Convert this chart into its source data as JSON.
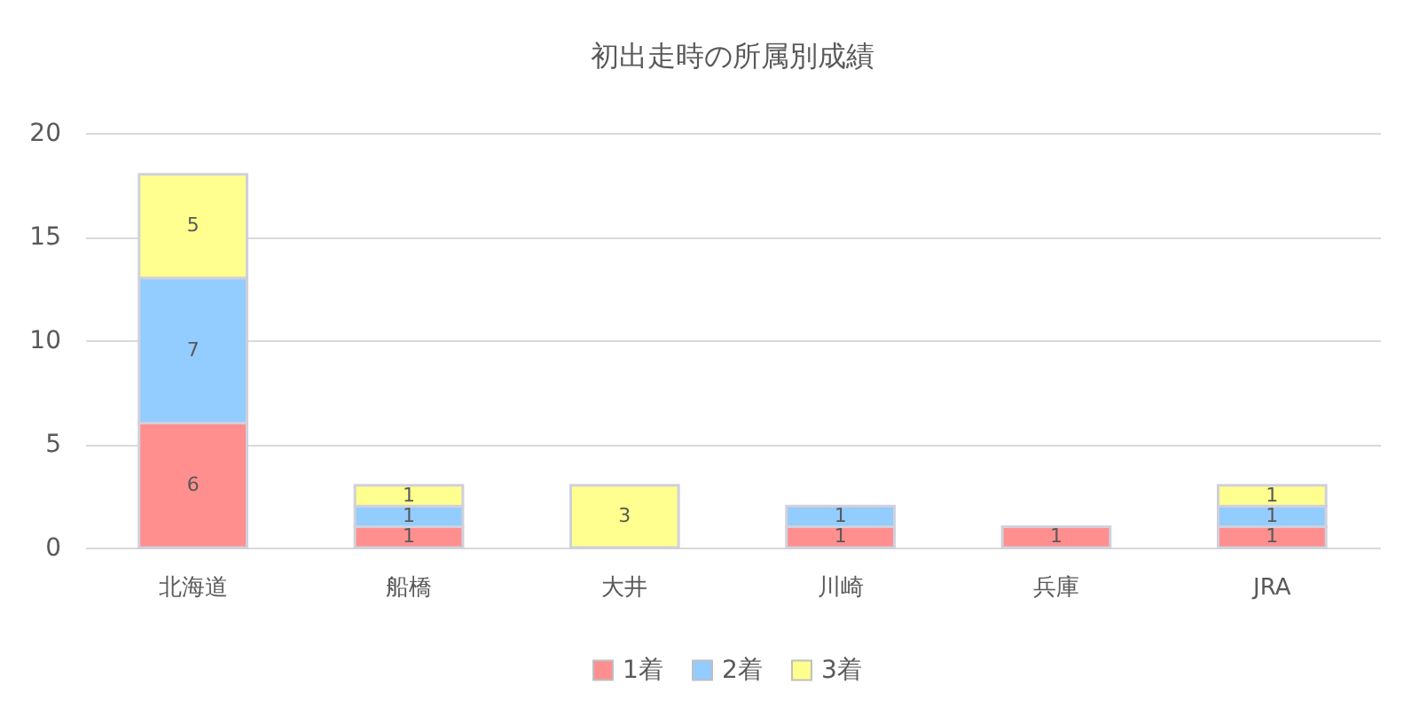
{
  "chart_data": {
    "type": "bar",
    "title": "初出走時の所属別成績",
    "categories": [
      "北海道",
      "船橋",
      "大井",
      "川崎",
      "兵庫",
      "JRA"
    ],
    "series": [
      {
        "name": "1着",
        "color": "#ff8f8f",
        "values": [
          6,
          1,
          null,
          1,
          1,
          1
        ]
      },
      {
        "name": "2着",
        "color": "#93cdff",
        "values": [
          7,
          1,
          null,
          1,
          null,
          1
        ]
      },
      {
        "name": "3着",
        "color": "#ffff8f",
        "values": [
          5,
          1,
          3,
          null,
          null,
          1
        ]
      }
    ],
    "stacked": true,
    "ylim": [
      0,
      20
    ],
    "yticks": [
      0,
      5,
      10,
      15,
      20
    ],
    "grid": "y",
    "legend": "bottom",
    "data_labels": true
  }
}
